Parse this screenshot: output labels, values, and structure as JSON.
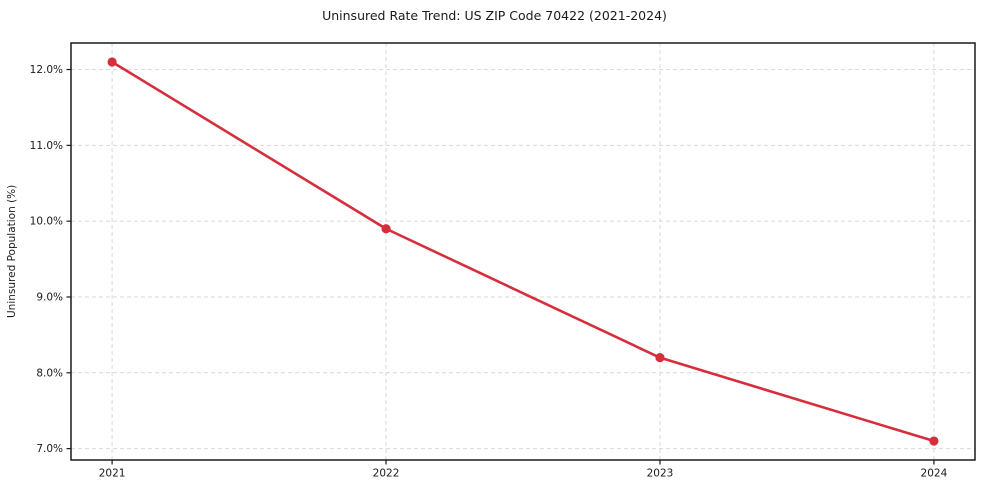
{
  "chart_data": {
    "type": "line",
    "title": "Uninsured Rate Trend: US ZIP Code 70422 (2021-2024)",
    "xlabel": "",
    "ylabel": "Uninsured Population (%)",
    "x": [
      2021,
      2022,
      2023,
      2024
    ],
    "x_tick_labels": [
      "2021",
      "2022",
      "2023",
      "2024"
    ],
    "series": [
      {
        "name": "Uninsured Rate",
        "values": [
          12.1,
          9.9,
          8.2,
          7.1
        ]
      }
    ],
    "y_ticks": [
      7.0,
      8.0,
      9.0,
      10.0,
      11.0,
      12.0
    ],
    "y_tick_labels": [
      "7.0%",
      "8.0%",
      "9.0%",
      "10.0%",
      "11.0%",
      "12.0%"
    ],
    "xlim": [
      2020.85,
      2024.15
    ],
    "ylim": [
      6.85,
      12.35
    ],
    "grid": true,
    "grid_style": "dashed",
    "legend": "none",
    "colors": {
      "line": "#d62e3c",
      "marker": "#d62e3c",
      "grid": "#d9d9d9",
      "axis": "#1a1a1a",
      "background": "#ffffff",
      "text": "#1a1a1a"
    }
  }
}
